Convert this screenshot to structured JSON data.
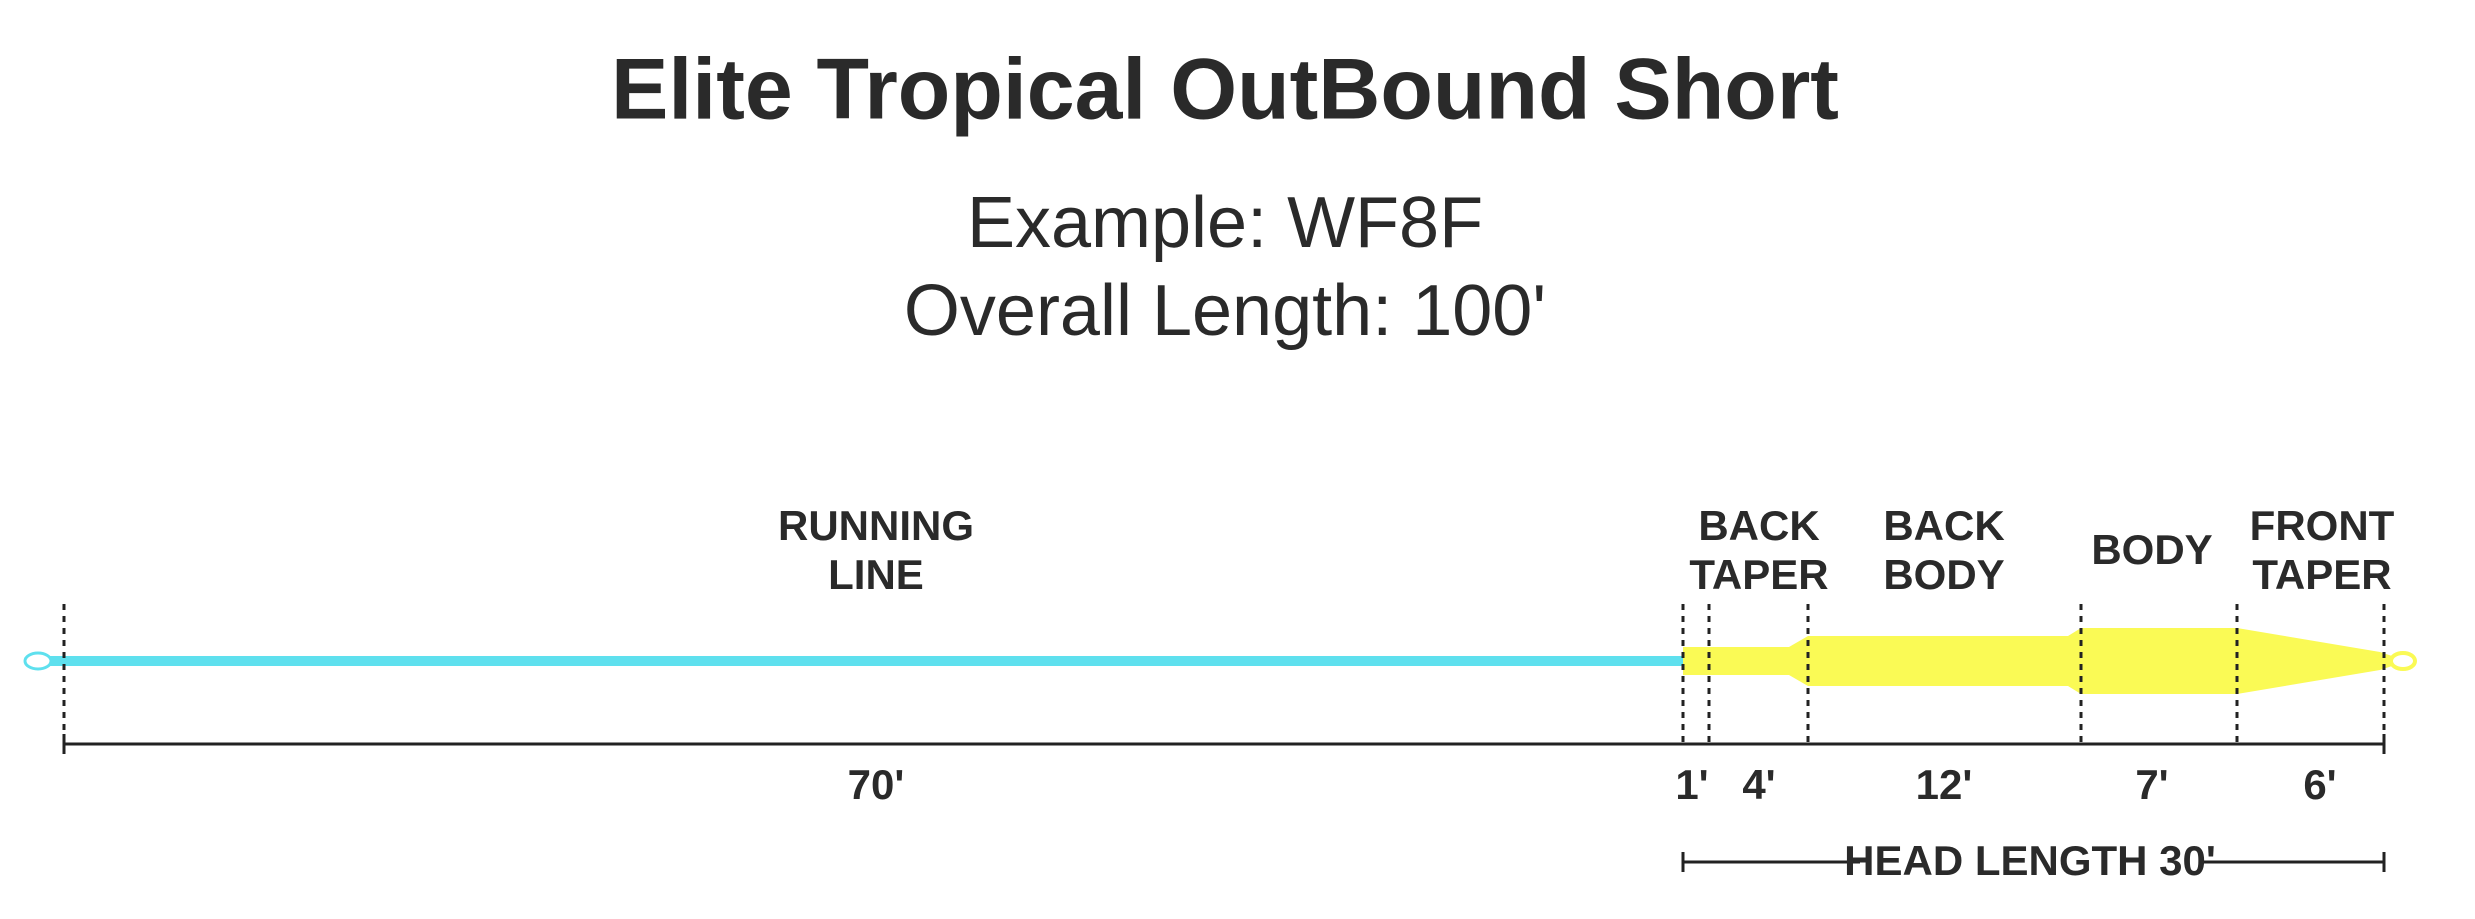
{
  "header": {
    "title": "Elite Tropical OutBound Short",
    "subtitle": [
      "Example: WF8F",
      "Overall Length: 100'"
    ]
  },
  "sections": [
    {
      "label": [
        "RUNNING",
        "LINE"
      ],
      "length": "70'"
    },
    {
      "label": [],
      "length": "1'"
    },
    {
      "label": [
        "BACK",
        "TAPER"
      ],
      "length": "4'"
    },
    {
      "label": [
        "BACK",
        "BODY"
      ],
      "length": "12'"
    },
    {
      "label": [
        "BODY"
      ],
      "length": "7'"
    },
    {
      "label": [
        "FRONT",
        "TAPER"
      ],
      "length": "6'"
    }
  ],
  "head_length": "HEAD LENGTH 30'"
}
